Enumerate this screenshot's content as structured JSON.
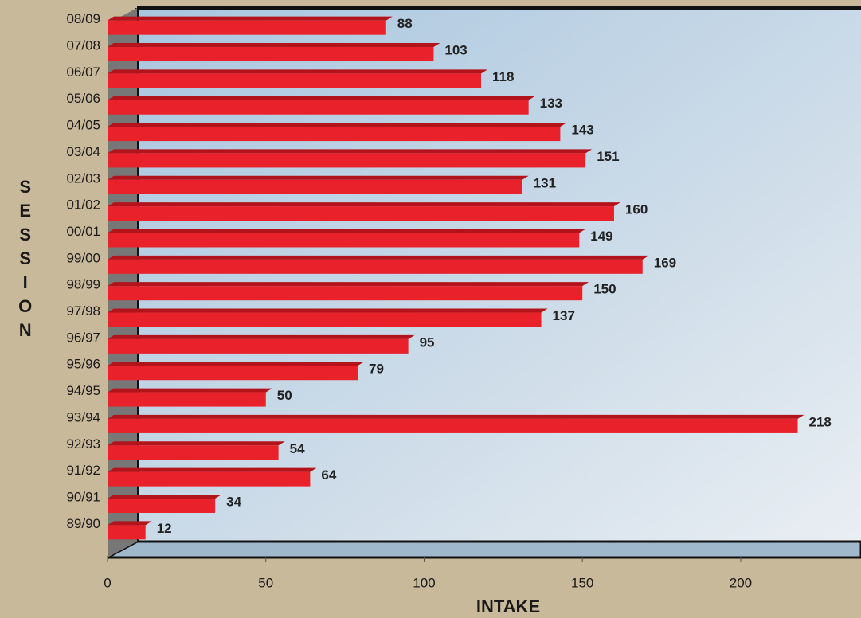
{
  "chart_data": {
    "type": "bar",
    "orientation": "horizontal",
    "x_label": "INTAKE",
    "y_label": "SESSION",
    "categories": [
      "08/09",
      "07/08",
      "06/07",
      "05/06",
      "04/05",
      "03/04",
      "02/03",
      "01/02",
      "00/01",
      "99/00",
      "98/99",
      "97/98",
      "96/97",
      "95/96",
      "94/95",
      "93/94",
      "92/93",
      "91/92",
      "90/91",
      "89/90"
    ],
    "values": [
      88,
      103,
      118,
      133,
      143,
      151,
      131,
      160,
      149,
      169,
      150,
      137,
      95,
      79,
      50,
      218,
      54,
      64,
      34,
      12
    ],
    "color": "#e8212b",
    "xlim": [
      0,
      238
    ],
    "xticks": [
      0,
      50,
      100,
      150,
      200
    ],
    "grid": false
  }
}
